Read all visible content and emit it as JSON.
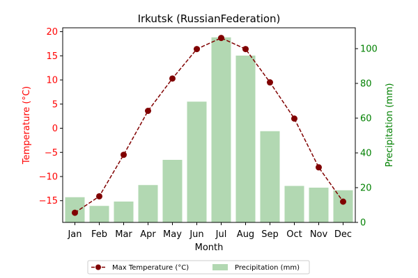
{
  "chart_data": {
    "type": "bar+line",
    "title": "Irkutsk (RussianFederation)",
    "xlabel": "Month",
    "categories": [
      "Jan",
      "Feb",
      "Mar",
      "Apr",
      "May",
      "Jun",
      "Jul",
      "Aug",
      "Sep",
      "Oct",
      "Nov",
      "Dec"
    ],
    "series": [
      {
        "name": "Max Temperature (°C)",
        "kind": "line",
        "axis": "left",
        "color": "#800000",
        "line_style": "dashed",
        "marker": "circle",
        "values": [
          -17.5,
          -14.1,
          -5.5,
          3.6,
          10.3,
          16.4,
          18.7,
          16.4,
          9.5,
          2.0,
          -8.1,
          -15.2
        ]
      },
      {
        "name": "Precipitation (mm)",
        "kind": "bar",
        "axis": "right",
        "color": "#b2d8b2",
        "values": [
          14.5,
          9.5,
          12.0,
          21.5,
          36.0,
          69.5,
          106.5,
          96.0,
          52.5,
          21.0,
          20.0,
          18.5
        ]
      }
    ],
    "y_left": {
      "label": "Temperature (°C)",
      "color": "#ff0000",
      "range": [
        -19.5,
        20.8
      ],
      "ticks": [
        -15,
        -10,
        -5,
        0,
        5,
        10,
        15,
        20
      ]
    },
    "y_right": {
      "label": "Precipitation (mm)",
      "color": "#008000",
      "range": [
        0,
        112
      ],
      "ticks": [
        0,
        20,
        40,
        60,
        80,
        100
      ]
    },
    "grid": false,
    "legend_position": "bottom-center"
  }
}
